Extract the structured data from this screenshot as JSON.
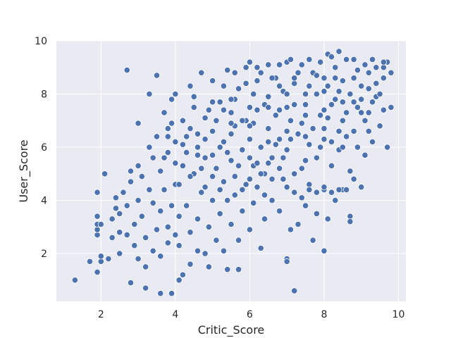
{
  "chart_data": {
    "type": "scatter",
    "title": "",
    "xlabel": "Critic_Score",
    "ylabel": "User_Score",
    "xlim": [
      0.8,
      10.2
    ],
    "ylim": [
      0.2,
      10.0
    ],
    "xticks": [
      2,
      4,
      6,
      8,
      10
    ],
    "yticks": [
      2,
      4,
      6,
      8,
      10
    ],
    "grid": true,
    "colors": {
      "background": "#eaeaf2",
      "grid": "#ffffff",
      "point": "#4c72b0",
      "point_edge": "#ffffff"
    },
    "series": [
      {
        "values_note": "",
        "points": [
          [
            1.3,
            1.0
          ],
          [
            1.7,
            1.7
          ],
          [
            1.9,
            1.3
          ],
          [
            1.9,
            2.7
          ],
          [
            1.9,
            2.9
          ],
          [
            1.9,
            3.1
          ],
          [
            1.9,
            3.4
          ],
          [
            1.9,
            4.3
          ],
          [
            2.0,
            1.7
          ],
          [
            2.0,
            1.9
          ],
          [
            2.0,
            3.1
          ],
          [
            2.1,
            5.0
          ],
          [
            2.2,
            1.8
          ],
          [
            2.3,
            2.6
          ],
          [
            2.3,
            3.3
          ],
          [
            2.4,
            3.7
          ],
          [
            2.4,
            4.1
          ],
          [
            2.5,
            2.0
          ],
          [
            2.5,
            2.8
          ],
          [
            2.5,
            3.5
          ],
          [
            2.6,
            4.3
          ],
          [
            2.7,
            2.7
          ],
          [
            2.7,
            3.8
          ],
          [
            2.7,
            8.9
          ],
          [
            2.8,
            0.9
          ],
          [
            2.8,
            4.7
          ],
          [
            2.8,
            5.1
          ],
          [
            2.9,
            2.3
          ],
          [
            2.9,
            3.1
          ],
          [
            3.0,
            1.8
          ],
          [
            3.0,
            4.0
          ],
          [
            3.0,
            5.3
          ],
          [
            3.0,
            6.9
          ],
          [
            3.1,
            3.4
          ],
          [
            3.1,
            4.9
          ],
          [
            3.2,
            0.7
          ],
          [
            3.2,
            1.5
          ],
          [
            3.2,
            2.6
          ],
          [
            3.3,
            4.4
          ],
          [
            3.3,
            6.0
          ],
          [
            3.3,
            8.0
          ],
          [
            3.4,
            2.1
          ],
          [
            3.4,
            3.9
          ],
          [
            3.4,
            5.6
          ],
          [
            3.5,
            2.9
          ],
          [
            3.5,
            6.4
          ],
          [
            3.5,
            8.7
          ],
          [
            3.6,
            0.5
          ],
          [
            3.6,
            1.9
          ],
          [
            3.6,
            3.6
          ],
          [
            3.6,
            5.1
          ],
          [
            3.7,
            4.4
          ],
          [
            3.7,
            7.3
          ],
          [
            3.8,
            2.4
          ],
          [
            3.8,
            3.0
          ],
          [
            3.8,
            5.8
          ],
          [
            3.8,
            6.7
          ],
          [
            3.9,
            0.5
          ],
          [
            3.9,
            3.8
          ],
          [
            3.9,
            7.8
          ],
          [
            4.0,
            2.7
          ],
          [
            4.0,
            4.6
          ],
          [
            4.0,
            6.2
          ],
          [
            4.0,
            8.0
          ],
          [
            4.1,
            1.0
          ],
          [
            4.1,
            2.3
          ],
          [
            4.1,
            3.4
          ],
          [
            4.2,
            1.2
          ],
          [
            4.2,
            5.3
          ],
          [
            4.2,
            7.0
          ],
          [
            4.3,
            3.8
          ],
          [
            4.3,
            6.4
          ],
          [
            4.4,
            1.6
          ],
          [
            4.4,
            2.8
          ],
          [
            4.4,
            8.3
          ],
          [
            4.5,
            5.0
          ],
          [
            4.5,
            7.5
          ],
          [
            4.6,
            2.1
          ],
          [
            4.6,
            3.3
          ],
          [
            4.6,
            6.0
          ],
          [
            4.7,
            4.3
          ],
          [
            4.7,
            8.8
          ],
          [
            4.8,
            2.0
          ],
          [
            4.8,
            5.6
          ],
          [
            4.8,
            7.1
          ],
          [
            4.9,
            1.5
          ],
          [
            4.9,
            3.0
          ],
          [
            5.0,
            4.0
          ],
          [
            5.0,
            6.6
          ],
          [
            5.0,
            8.5
          ],
          [
            5.1,
            2.5
          ],
          [
            5.1,
            5.2
          ],
          [
            5.2,
            3.5
          ],
          [
            5.2,
            7.7
          ],
          [
            5.3,
            2.1
          ],
          [
            5.3,
            4.7
          ],
          [
            5.3,
            6.2
          ],
          [
            5.4,
            1.4
          ],
          [
            5.4,
            8.9
          ],
          [
            5.5,
            3.1
          ],
          [
            5.5,
            5.5
          ],
          [
            5.5,
            7.3
          ],
          [
            5.6,
            4.2
          ],
          [
            5.6,
            6.8
          ],
          [
            5.7,
            1.4
          ],
          [
            5.7,
            2.5
          ],
          [
            5.7,
            8.2
          ],
          [
            5.8,
            3.6
          ],
          [
            5.8,
            5.9
          ],
          [
            5.9,
            4.6
          ],
          [
            5.9,
            7.0
          ],
          [
            6.0,
            2.9
          ],
          [
            6.0,
            6.3
          ],
          [
            6.0,
            9.2
          ],
          [
            6.1,
            3.9
          ],
          [
            6.1,
            5.3
          ],
          [
            6.1,
            8.0
          ],
          [
            6.2,
            4.5
          ],
          [
            6.2,
            7.4
          ],
          [
            6.3,
            2.2
          ],
          [
            6.3,
            6.0
          ],
          [
            6.3,
            8.8
          ],
          [
            6.4,
            3.3
          ],
          [
            6.4,
            5.0
          ],
          [
            6.5,
            6.7
          ],
          [
            6.5,
            7.9
          ],
          [
            6.6,
            4.0
          ],
          [
            6.6,
            5.6
          ],
          [
            6.7,
            7.2
          ],
          [
            6.7,
            8.6
          ],
          [
            6.8,
            3.6
          ],
          [
            6.8,
            6.3
          ],
          [
            6.9,
            4.8
          ],
          [
            6.9,
            8.1
          ],
          [
            7.0,
            1.8
          ],
          [
            7.0,
            1.7
          ],
          [
            7.0,
            5.9
          ],
          [
            7.0,
            9.2
          ],
          [
            7.1,
            2.9
          ],
          [
            7.1,
            7.0
          ],
          [
            7.2,
            0.6
          ],
          [
            7.2,
            4.3
          ],
          [
            7.2,
            8.4
          ],
          [
            7.3,
            3.1
          ],
          [
            7.3,
            6.5
          ],
          [
            7.4,
            5.2
          ],
          [
            7.4,
            9.1
          ],
          [
            7.5,
            3.8
          ],
          [
            7.5,
            7.6
          ],
          [
            7.6,
            4.6
          ],
          [
            7.6,
            6.1
          ],
          [
            7.7,
            2.5
          ],
          [
            7.7,
            8.8
          ],
          [
            7.8,
            3.5
          ],
          [
            7.8,
            5.6
          ],
          [
            7.9,
            7.2
          ],
          [
            7.9,
            9.2
          ],
          [
            8.0,
            2.1
          ],
          [
            8.0,
            4.4
          ],
          [
            8.0,
            6.7
          ],
          [
            8.1,
            3.3
          ],
          [
            8.1,
            8.3
          ],
          [
            8.1,
            9.5
          ],
          [
            8.2,
            5.3
          ],
          [
            8.2,
            7.6
          ],
          [
            8.3,
            4.0
          ],
          [
            8.3,
            9.0
          ],
          [
            8.4,
            5.9
          ],
          [
            8.4,
            8.1
          ],
          [
            8.5,
            4.4
          ],
          [
            8.5,
            7.0
          ],
          [
            8.6,
            6.4
          ],
          [
            8.6,
            9.3
          ],
          [
            8.7,
            3.4
          ],
          [
            8.7,
            5.1
          ],
          [
            8.7,
            3.2
          ],
          [
            8.8,
            7.7
          ],
          [
            8.9,
            6.0
          ],
          [
            8.9,
            8.9
          ],
          [
            9.0,
            4.5
          ],
          [
            9.0,
            7.3
          ],
          [
            9.1,
            5.7
          ],
          [
            9.1,
            9.1
          ],
          [
            9.2,
            6.6
          ],
          [
            9.2,
            8.2
          ],
          [
            9.3,
            6.2
          ],
          [
            9.4,
            7.9
          ],
          [
            9.4,
            9.0
          ],
          [
            9.5,
            6.8
          ],
          [
            9.6,
            7.4
          ],
          [
            9.6,
            8.6
          ],
          [
            9.7,
            6.0
          ],
          [
            9.7,
            9.2
          ],
          [
            9.8,
            7.5
          ],
          [
            9.8,
            8.8
          ],
          [
            4.3,
            5.8
          ],
          [
            4.4,
            6.7
          ],
          [
            4.5,
            7.9
          ],
          [
            4.6,
            6.5
          ],
          [
            4.7,
            5.2
          ],
          [
            4.8,
            6.3
          ],
          [
            4.9,
            7.4
          ],
          [
            5.0,
            5.7
          ],
          [
            5.1,
            7.0
          ],
          [
            5.2,
            6.0
          ],
          [
            5.3,
            7.4
          ],
          [
            5.4,
            5.8
          ],
          [
            5.5,
            6.5
          ],
          [
            5.6,
            7.8
          ],
          [
            5.7,
            5.3
          ],
          [
            5.8,
            7.0
          ],
          [
            5.9,
            8.4
          ],
          [
            6.0,
            5.6
          ],
          [
            6.1,
            6.9
          ],
          [
            6.2,
            8.5
          ],
          [
            6.3,
            5.0
          ],
          [
            6.4,
            7.6
          ],
          [
            6.5,
            5.4
          ],
          [
            6.6,
            8.6
          ],
          [
            6.7,
            6.1
          ],
          [
            6.8,
            7.4
          ],
          [
            6.9,
            5.6
          ],
          [
            7.0,
            8.0
          ],
          [
            7.1,
            6.3
          ],
          [
            7.2,
            7.6
          ],
          [
            7.3,
            8.8
          ],
          [
            7.4,
            6.9
          ],
          [
            7.5,
            5.5
          ],
          [
            7.6,
            8.3
          ],
          [
            7.7,
            6.7
          ],
          [
            7.8,
            8.0
          ],
          [
            7.9,
            6.0
          ],
          [
            8.0,
            8.6
          ],
          [
            8.1,
            7.1
          ],
          [
            8.2,
            6.2
          ],
          [
            8.3,
            7.8
          ],
          [
            8.4,
            6.6
          ],
          [
            8.5,
            8.5
          ],
          [
            8.6,
            7.3
          ],
          [
            8.7,
            8.0
          ],
          [
            8.8,
            6.6
          ],
          [
            8.9,
            7.5
          ],
          [
            9.0,
            8.3
          ],
          [
            9.1,
            7.0
          ],
          [
            9.2,
            8.8
          ],
          [
            9.3,
            7.7
          ],
          [
            9.4,
            8.4
          ],
          [
            9.5,
            8.0
          ],
          [
            9.6,
            9.0
          ],
          [
            5.0,
            4.9
          ],
          [
            5.2,
            4.4
          ],
          [
            5.4,
            4.0
          ],
          [
            5.6,
            4.9
          ],
          [
            5.8,
            4.4
          ],
          [
            6.0,
            4.8
          ],
          [
            6.2,
            5.4
          ],
          [
            6.4,
            4.2
          ],
          [
            6.6,
            4.8
          ],
          [
            6.8,
            5.2
          ],
          [
            7.0,
            4.5
          ],
          [
            7.2,
            5.0
          ],
          [
            7.4,
            4.1
          ],
          [
            7.6,
            4.4
          ],
          [
            7.8,
            4.3
          ],
          [
            8.0,
            4.5
          ],
          [
            8.2,
            4.3
          ],
          [
            8.4,
            4.4
          ],
          [
            8.6,
            4.4
          ],
          [
            8.8,
            4.8
          ],
          [
            4.1,
            4.6
          ],
          [
            4.2,
            6.1
          ],
          [
            4.0,
            5.4
          ],
          [
            3.9,
            6.9
          ],
          [
            3.8,
            6.4
          ],
          [
            3.7,
            5.6
          ],
          [
            4.4,
            4.9
          ],
          [
            4.6,
            5.7
          ],
          [
            4.8,
            4.5
          ],
          [
            5.0,
            7.7
          ],
          [
            5.3,
            8.3
          ],
          [
            5.6,
            8.8
          ],
          [
            5.9,
            9.0
          ],
          [
            6.2,
            9.0
          ],
          [
            6.5,
            9.1
          ],
          [
            6.8,
            9.1
          ],
          [
            7.1,
            9.3
          ],
          [
            7.6,
            9.3
          ],
          [
            8.2,
            9.4
          ],
          [
            8.4,
            9.6
          ],
          [
            8.8,
            9.3
          ],
          [
            9.3,
            9.3
          ],
          [
            9.6,
            9.2
          ],
          [
            6.0,
            7.5
          ],
          [
            6.5,
            7.5
          ],
          [
            7.0,
            7.5
          ],
          [
            7.5,
            7.2
          ],
          [
            8.0,
            7.4
          ],
          [
            8.5,
            7.7
          ],
          [
            9.0,
            7.8
          ],
          [
            7.5,
            8.0
          ],
          [
            8.0,
            8.1
          ],
          [
            7.0,
            6.6
          ],
          [
            7.5,
            6.4
          ],
          [
            8.0,
            6.3
          ],
          [
            8.5,
            6.0
          ],
          [
            6.5,
            6.2
          ],
          [
            6.0,
            6.8
          ],
          [
            5.5,
            6.9
          ],
          [
            5.5,
            7.8
          ],
          [
            6.8,
            8.3
          ],
          [
            7.2,
            8.6
          ],
          [
            7.8,
            8.7
          ],
          [
            8.3,
            8.6
          ],
          [
            8.8,
            8.6
          ],
          [
            9.2,
            7.3
          ]
        ]
      }
    ]
  }
}
